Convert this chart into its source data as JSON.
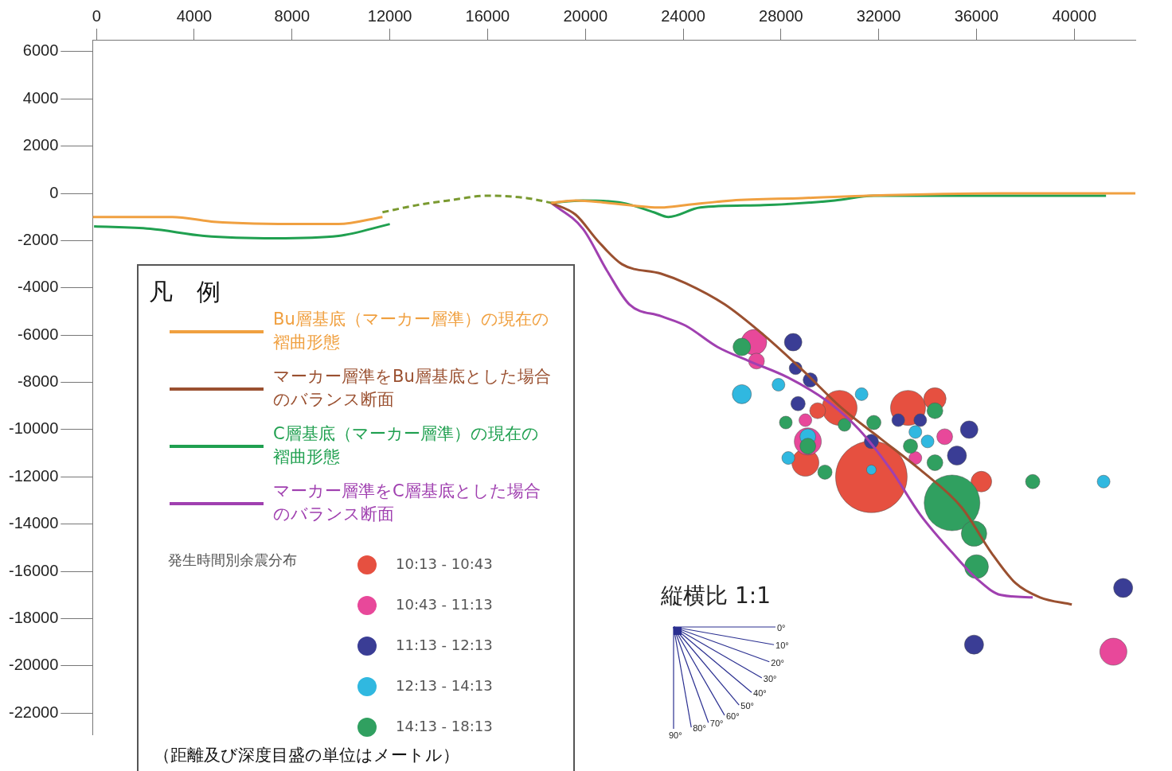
{
  "chart_data": {
    "type": "line",
    "legend_title": "凡　例",
    "legend": "bottom left",
    "grid": false,
    "xlim": [
      -160,
      42500
    ],
    "xticks": [
      0,
      4000,
      8000,
      12000,
      16000,
      20000,
      24000,
      28000,
      32000,
      36000,
      40000
    ],
    "ylim": [
      -22900,
      6500
    ],
    "yticks": [
      6000,
      4000,
      2000,
      0,
      -2000,
      -4000,
      -6000,
      -8000,
      -10000,
      -12000,
      -14000,
      -16000,
      -18000,
      -20000,
      -22000
    ],
    "annotations": [
      "縦横比 1:1",
      "発生時間別余震分布",
      "（距離及び深度目盛の単位はメートル）",
      "0°",
      "10°",
      "20°",
      "30°",
      "40°",
      "50°",
      "60°",
      "70°",
      "80°",
      "90°"
    ],
    "series": [
      {
        "name": "Bu層基底（マーカー層準）の現在の褶曲形態",
        "color": "#f0a040",
        "x": [
          -150,
          3100,
          4800,
          8600,
          9900,
          11700,
          15000,
          18600,
          19600,
          20900,
          23100,
          24100,
          26000,
          28900,
          31500,
          37000,
          42500
        ],
        "values": [
          -1000,
          -1000,
          -1200,
          -1300,
          -1300,
          -1000,
          null,
          -400,
          -300,
          -400,
          -600,
          -500,
          -300,
          -200,
          -100,
          0,
          0
        ]
      },
      {
        "name": "マーカー層準をBu層基底とした場合のバランス断面",
        "color": "#9a5030",
        "x": [
          18600,
          19600,
          20500,
          21500,
          23100,
          24100,
          25700,
          27300,
          28900,
          30500,
          32100,
          33700,
          35400,
          36600,
          37600,
          38600,
          39900
        ],
        "values": [
          -400,
          -900,
          -2000,
          -3000,
          -3400,
          -3800,
          -4700,
          -6000,
          -7500,
          -9100,
          -10400,
          -11700,
          -13300,
          -15200,
          -16500,
          -17100,
          -17400
        ]
      },
      {
        "name": "C層基底（マーカー層準）の現在の褶曲形態",
        "color": "#20a050",
        "x": [
          -100,
          2200,
          4400,
          7300,
          9900,
          12000,
          15000,
          18600,
          19900,
          21500,
          22800,
          23400,
          24700,
          27300,
          30200,
          31800,
          37000,
          41300
        ],
        "values": [
          -1400,
          -1500,
          -1800,
          -1900,
          -1800,
          -1300,
          null,
          -400,
          -300,
          -400,
          -800,
          -1000,
          -600,
          -500,
          -300,
          -100,
          -100,
          -100
        ]
      },
      {
        "name": "マーカー層準をC層基底とした場合のバランス断面",
        "color": "#a040b0",
        "x": [
          18600,
          19900,
          20900,
          21800,
          23100,
          24100,
          25400,
          26700,
          28300,
          29900,
          31200,
          32500,
          33700,
          35000,
          36000,
          37000,
          38300
        ],
        "values": [
          -400,
          -1500,
          -3300,
          -4700,
          -5200,
          -5600,
          -6500,
          -7100,
          -7800,
          -8800,
          -10000,
          -11700,
          -13600,
          -15200,
          -16300,
          -17000,
          -17100
        ]
      },
      {
        "color": "#7a9a30",
        "line_style": "dashed",
        "x": [
          11700,
          13100,
          14400,
          16000,
          17600,
          18600
        ],
        "values": [
          -800,
          -500,
          -300,
          -100,
          -200,
          -400
        ]
      },
      {
        "name": "10:13 - 10:43",
        "type": "bubble",
        "color": "#e65040",
        "x": [
          31700,
          29000,
          30400,
          33200,
          34300,
          36200,
          29500
        ],
        "values": [
          -12000,
          -11400,
          -9080,
          -9080,
          -8700,
          -12200,
          -9200
        ],
        "sizes": [
          1,
          0.143,
          0.239,
          0.239,
          0.097,
          0.083,
          0.049
        ]
      },
      {
        "name": "10:43 - 11:13",
        "type": "bubble",
        "color": "#e8489a",
        "x": [
          26900,
          27000,
          29100,
          41600,
          34700,
          29000,
          33500
        ],
        "values": [
          -6300,
          -7100,
          -10500,
          -19400,
          -10300,
          -9600,
          -11200
        ],
        "sizes": [
          0.126,
          0.049,
          0.143,
          0.143,
          0.049,
          0.032,
          0.032
        ]
      },
      {
        "name": "11:13 - 12:13",
        "type": "bubble",
        "color": "#3a3d95",
        "x": [
          28500,
          29200,
          28700,
          35700,
          35200,
          35900,
          42000,
          28600,
          31700,
          32800,
          33700
        ],
        "values": [
          -6300,
          -7900,
          -8900,
          -10000,
          -11100,
          -19100,
          -16700,
          -7400,
          -10500,
          -9600,
          -9600
        ],
        "sizes": [
          0.06,
          0.04,
          0.04,
          0.06,
          0.071,
          0.071,
          0.071,
          0.032,
          0.04,
          0.032,
          0.032
        ]
      },
      {
        "name": "12:13 - 14:13",
        "type": "bubble",
        "color": "#30b8e0",
        "x": [
          26400,
          27900,
          31300,
          29100,
          33500,
          41200,
          31700,
          28300,
          34000
        ],
        "values": [
          -8500,
          -8100,
          -8500,
          -10300,
          -10100,
          -12200,
          -11700,
          -11200,
          -10500
        ],
        "sizes": [
          0.071,
          0.032,
          0.032,
          0.049,
          0.032,
          0.032,
          0.018,
          0.032,
          0.032
        ]
      },
      {
        "name": "14:13 - 18:13",
        "type": "bubble",
        "color": "#30a060",
        "x": [
          26400,
          35000,
          35900,
          36000,
          38300,
          34300,
          29100,
          34300,
          31800,
          28200,
          29800,
          33300,
          30600
        ],
        "values": [
          -6500,
          -13100,
          -14400,
          -15800,
          -12200,
          -9200,
          -10700,
          -11400,
          -9700,
          -9700,
          -11800,
          -10700,
          -9800
        ],
        "sizes": [
          0.06,
          0.605,
          0.126,
          0.111,
          0.04,
          0.049,
          0.049,
          0.049,
          0.04,
          0.032,
          0.04,
          0.04,
          0.032
        ]
      }
    ]
  }
}
